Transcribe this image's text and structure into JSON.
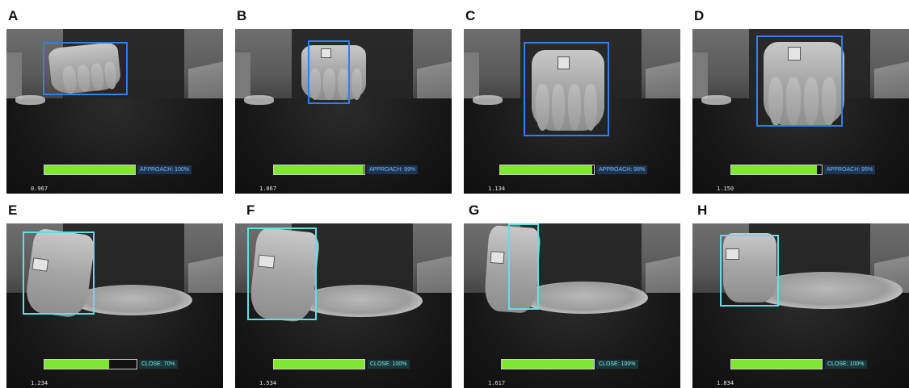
{
  "colors": {
    "approach_box": "#2f7ff0",
    "close_box": "#5fe0e6",
    "bar_fill": "#7fe633"
  },
  "panels": [
    {
      "letter": "A",
      "phase": "approach",
      "status": "APPROACH: 100%",
      "progress": 1.0,
      "time": "0.967"
    },
    {
      "letter": "B",
      "phase": "approach",
      "status": "APPROACH: 99%",
      "progress": 0.99,
      "time": "1.067"
    },
    {
      "letter": "C",
      "phase": "approach",
      "status": "APPROACH: 98%",
      "progress": 0.98,
      "time": "1.134"
    },
    {
      "letter": "D",
      "phase": "approach",
      "status": "APPROACH: 95%",
      "progress": 0.95,
      "time": "1.150"
    },
    {
      "letter": "E",
      "phase": "close",
      "status": "CLOSE: 70%",
      "progress": 0.7,
      "time": "1.234"
    },
    {
      "letter": "F",
      "phase": "close",
      "status": "CLOSE: 100%",
      "progress": 1.0,
      "time": "1.534"
    },
    {
      "letter": "G",
      "phase": "close",
      "status": "CLOSE: 100%",
      "progress": 1.0,
      "time": "1.617"
    },
    {
      "letter": "H",
      "phase": "close",
      "status": "CLOSE: 100%",
      "progress": 1.0,
      "time": "1.834"
    }
  ]
}
